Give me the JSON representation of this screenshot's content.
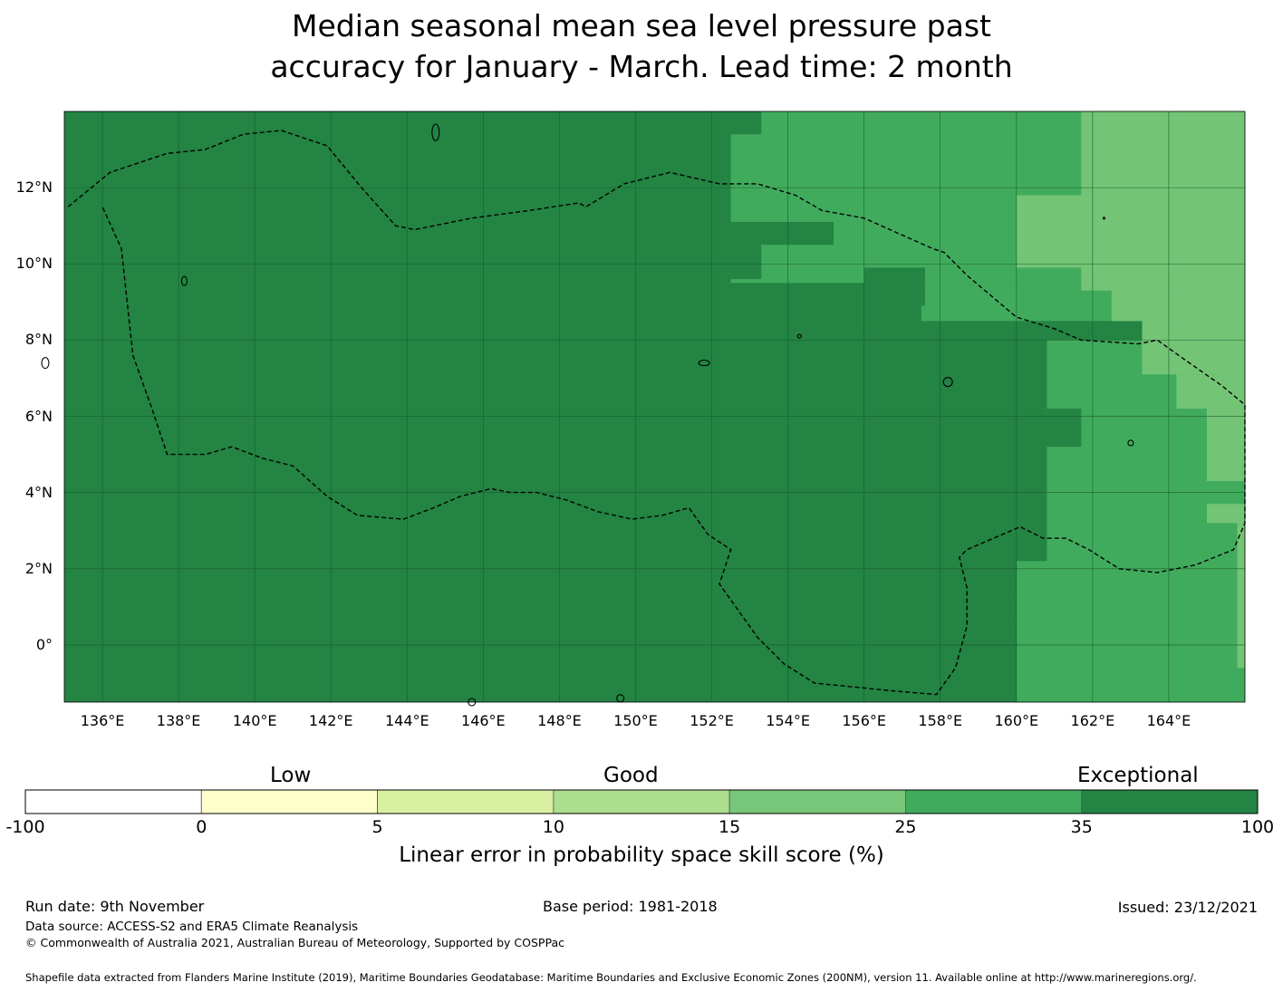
{
  "title": "Median seasonal mean sea level pressure past\naccuracy for January - March. Lead time: 2 month",
  "map": {
    "lon_range": [
      135,
      166
    ],
    "lat_range": [
      -1.5,
      14
    ],
    "lat_ticks": [
      {
        "value": 12,
        "label": "12°N"
      },
      {
        "value": 10,
        "label": "10°N"
      },
      {
        "value": 8,
        "label": "8°N"
      },
      {
        "value": 6,
        "label": "6°N"
      },
      {
        "value": 4,
        "label": "4°N"
      },
      {
        "value": 2,
        "label": "2°N"
      },
      {
        "value": 0,
        "label": "0°"
      }
    ],
    "lon_ticks": [
      {
        "value": 136,
        "label": "136°E"
      },
      {
        "value": 138,
        "label": "138°E"
      },
      {
        "value": 140,
        "label": "140°E"
      },
      {
        "value": 142,
        "label": "142°E"
      },
      {
        "value": 144,
        "label": "144°E"
      },
      {
        "value": 146,
        "label": "146°E"
      },
      {
        "value": 148,
        "label": "148°E"
      },
      {
        "value": 150,
        "label": "150°E"
      },
      {
        "value": 152,
        "label": "152°E"
      },
      {
        "value": 154,
        "label": "154°E"
      },
      {
        "value": 156,
        "label": "156°E"
      },
      {
        "value": 158,
        "label": "158°E"
      },
      {
        "value": 160,
        "label": "160°E"
      },
      {
        "value": 162,
        "label": "162°E"
      },
      {
        "value": 164,
        "label": "164°E"
      }
    ],
    "skill_regions": [
      {
        "category": "35-100",
        "color": "#238443",
        "lon": [
          135,
          166
        ],
        "lat": [
          -1.5,
          14
        ]
      },
      {
        "category": "25-35",
        "color": "#41ab5d",
        "lon": [
          152.5,
          166
        ],
        "lat": [
          9.5,
          14
        ]
      },
      {
        "category": "25-35",
        "color": "#41ab5d",
        "lon": [
          157.5,
          166
        ],
        "lat": [
          8.5,
          9.5
        ]
      },
      {
        "category": "25-35",
        "color": "#41ab5d",
        "lon": [
          160,
          166
        ],
        "lat": [
          -1.5,
          3.5
        ]
      },
      {
        "category": "25-35",
        "color": "#41ab5d",
        "lon": [
          160.8,
          166
        ],
        "lat": [
          3.5,
          8
        ]
      },
      {
        "category": "35-100",
        "color": "#238443",
        "lon": [
          152.5,
          153.3
        ],
        "lat": [
          13.4,
          14
        ]
      },
      {
        "category": "35-100",
        "color": "#238443",
        "lon": [
          153.3,
          155.2
        ],
        "lat": [
          10.5,
          11.1
        ]
      },
      {
        "category": "35-100",
        "color": "#238443",
        "lon": [
          152.5,
          153.3
        ],
        "lat": [
          9.6,
          11.1
        ]
      },
      {
        "category": "35-100",
        "color": "#238443",
        "lon": [
          156.0,
          157.6
        ],
        "lat": [
          8.9,
          9.9
        ]
      },
      {
        "category": "35-100",
        "color": "#238443",
        "lon": [
          152.5,
          155.8
        ],
        "lat": [
          8.5,
          9.3
        ]
      },
      {
        "category": "35-100",
        "color": "#238443",
        "lon": [
          155.8,
          157.0
        ],
        "lat": [
          8.5,
          8.9
        ]
      },
      {
        "category": "35-100",
        "color": "#238443",
        "lon": [
          160.8,
          161.7
        ],
        "lat": [
          5.2,
          6.2
        ]
      },
      {
        "category": "35-100",
        "color": "#238443",
        "lon": [
          159.2,
          160.8
        ],
        "lat": [
          2.2,
          3.5
        ]
      },
      {
        "category": "35-100",
        "color": "#238443",
        "lon": [
          159.2,
          160.0
        ],
        "lat": [
          0.6,
          1.2
        ]
      },
      {
        "category": "15-25",
        "color": "#74c476",
        "lon": [
          161.7,
          166
        ],
        "lat": [
          11.8,
          14
        ]
      },
      {
        "category": "15-25",
        "color": "#74c476",
        "lon": [
          160.0,
          166
        ],
        "lat": [
          9.9,
          11.8
        ]
      },
      {
        "category": "15-25",
        "color": "#74c476",
        "lon": [
          161.7,
          166
        ],
        "lat": [
          9.3,
          9.9
        ]
      },
      {
        "category": "15-25",
        "color": "#74c476",
        "lon": [
          162.5,
          166
        ],
        "lat": [
          8.5,
          9.3
        ]
      },
      {
        "category": "15-25",
        "color": "#74c476",
        "lon": [
          163.3,
          166
        ],
        "lat": [
          7.1,
          8.5
        ]
      },
      {
        "category": "15-25",
        "color": "#74c476",
        "lon": [
          164.2,
          166
        ],
        "lat": [
          6.2,
          7.1
        ]
      },
      {
        "category": "15-25",
        "color": "#74c476",
        "lon": [
          165.0,
          166
        ],
        "lat": [
          4.3,
          6.2
        ]
      },
      {
        "category": "15-25",
        "color": "#74c476",
        "lon": [
          165.0,
          166
        ],
        "lat": [
          3.2,
          3.7
        ]
      },
      {
        "category": "15-25",
        "color": "#74c476",
        "lon": [
          165.8,
          166
        ],
        "lat": [
          -0.6,
          3.2
        ]
      }
    ]
  },
  "colorbar": {
    "categories": [
      "Low",
      "Good",
      "Exceptional"
    ],
    "ticks": [
      "-100",
      "0",
      "5",
      "10",
      "15",
      "25",
      "35",
      "100"
    ],
    "colors": [
      "#ffffff",
      "#ffffcc",
      "#d9f0a3",
      "#addd8e",
      "#78c679",
      "#41ab5d",
      "#238443"
    ],
    "label": "Linear error in probability space skill score (%)"
  },
  "footer": {
    "run_date": "Run date: 9th November",
    "base_period": "Base period: 1981-2018",
    "issued": "Issued: 23/12/2021",
    "data_source": "Data source: ACCESS-S2 and ERA5 Climate Reanalysis",
    "copyright": "© Commonwealth of Australia 2021, Australian Bureau of Meteorology, Supported by COSPPac",
    "shapefile": "Shapefile data extracted from Flanders Marine Institute (2019), Maritime Boundaries Geodatabase: Maritime Boundaries and Exclusive Economic Zones (200NM), version 11. Available online at http://www.marineregions.org/."
  }
}
